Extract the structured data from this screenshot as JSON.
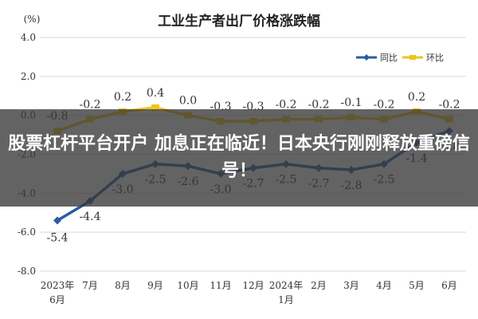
{
  "chart_data": {
    "type": "line",
    "title": "工业生产者出厂价格涨跌幅",
    "unit_label": "(%)",
    "categories": [
      [
        "2023年",
        "6月"
      ],
      [
        "7月"
      ],
      [
        "8月"
      ],
      [
        "9月"
      ],
      [
        "10月"
      ],
      [
        "11月"
      ],
      [
        "12月"
      ],
      [
        "2024年",
        "1月"
      ],
      [
        "2月"
      ],
      [
        "3月"
      ],
      [
        "4月"
      ],
      [
        "5月"
      ],
      [
        "6月"
      ]
    ],
    "y_ticks": [
      "4.0",
      "2.0",
      "0.0",
      "-2.0",
      "-4.0",
      "-6.0",
      "-8.0"
    ],
    "ylim": [
      -8,
      4
    ],
    "grid": true,
    "legend_position": "top-right",
    "series": [
      {
        "name": "同比",
        "color": "#2a5d9f",
        "values": [
          -5.4,
          -4.4,
          -3.0,
          -2.5,
          -2.6,
          -3.0,
          -2.7,
          -2.5,
          -2.7,
          -2.8,
          -2.5,
          -1.4,
          -0.8
        ],
        "labels": [
          "-5.4",
          "-4.4",
          "-3.0",
          "-2.5",
          "-2.6",
          "-3.0",
          "-2.7",
          "-2.5",
          "-2.7",
          "-2.8",
          "-2.5",
          "-1.4",
          "-0.8"
        ]
      },
      {
        "name": "环比",
        "color": "#f0c419",
        "values": [
          -0.8,
          -0.2,
          0.2,
          0.4,
          0.0,
          -0.3,
          -0.3,
          -0.2,
          -0.2,
          -0.1,
          -0.2,
          0.2,
          -0.2
        ],
        "labels": [
          "-0.8",
          "-0.2",
          "0.2",
          "0.4",
          "0.0",
          "-0.3",
          "-0.3",
          "-0.2",
          "-0.2",
          "-0.1",
          "-0.2",
          "0.2",
          "-0.2"
        ]
      }
    ]
  },
  "overlay": {
    "headline": "股票杠杆平台开户 加息正在临近！日本央行刚刚释放重磅信号！"
  }
}
